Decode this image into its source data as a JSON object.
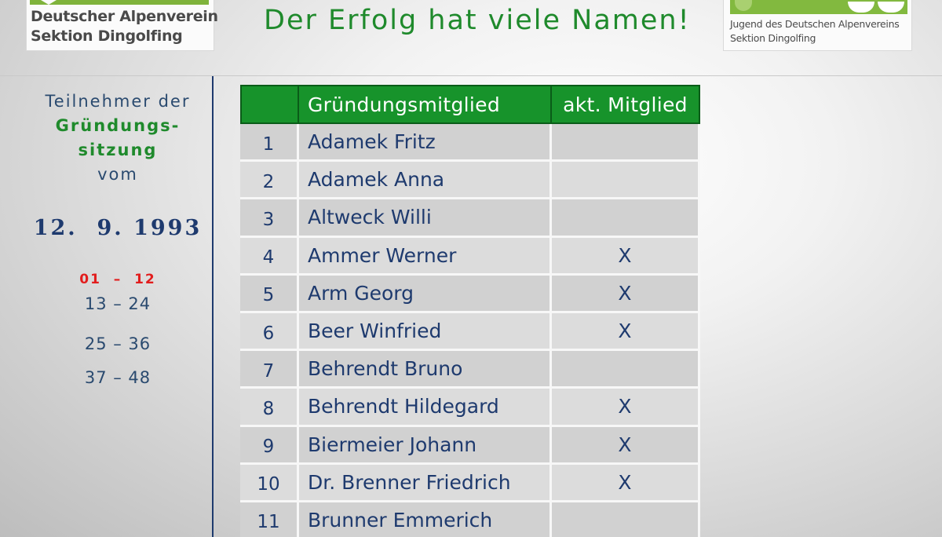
{
  "logos": {
    "left": {
      "line1": "Deutscher Alpenverein",
      "line2": "Sektion Dingolfing"
    },
    "right": {
      "line1": "Jugend des Deutschen Alpenvereins",
      "line2": "Sektion Dingolfing"
    }
  },
  "headline": "Der Erfolg hat viele Namen!",
  "sidebar": {
    "line1": "Teilnehmer der",
    "line2": "Gründungs-",
    "line3": "sitzung",
    "line4": "vom",
    "date": "12.  9. 1993",
    "ranges": [
      "01  –  12",
      "13 – 24",
      "25 – 36",
      "37 – 48"
    ]
  },
  "table": {
    "headers": [
      "",
      "Gründungsmitglied",
      "akt. Mitglied"
    ],
    "rows": [
      {
        "num": "1",
        "name": "Adamek Fritz",
        "active": ""
      },
      {
        "num": "2",
        "name": "Adamek Anna",
        "active": ""
      },
      {
        "num": "3",
        "name": "Altweck Willi",
        "active": ""
      },
      {
        "num": "4",
        "name": "Ammer Werner",
        "active": "X"
      },
      {
        "num": "5",
        "name": "Arm Georg",
        "active": "X"
      },
      {
        "num": "6",
        "name": "Beer Winfried",
        "active": "X"
      },
      {
        "num": "7",
        "name": "Behrendt Bruno",
        "active": ""
      },
      {
        "num": "8",
        "name": "Behrendt Hildegard",
        "active": "X"
      },
      {
        "num": "9",
        "name": "Biermeier Johann",
        "active": "X"
      },
      {
        "num": "10",
        "name": "Dr. Brenner Friedrich",
        "active": "X"
      },
      {
        "num": "11",
        "name": "Brunner Emmerich",
        "active": ""
      }
    ]
  },
  "colors": {
    "green": "#1f8a2c",
    "header_green": "#17932b",
    "navy": "#1e3a6e",
    "red": "#e21d1d"
  }
}
